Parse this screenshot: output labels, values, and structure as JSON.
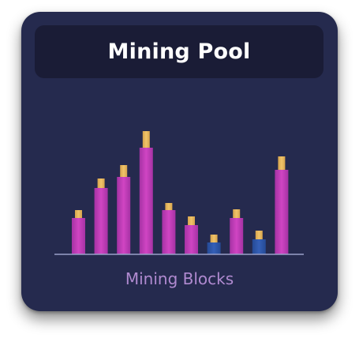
{
  "card": {
    "title": "Mining Pool",
    "footer_label": "Mining Blocks"
  },
  "chart_data": {
    "type": "bar",
    "values": [
      46,
      84,
      98,
      135,
      56,
      37,
      15,
      46,
      19,
      107
    ],
    "caps": [
      10,
      12,
      15,
      21,
      9,
      11,
      10,
      11,
      11,
      17
    ],
    "kinds": [
      "active",
      "active",
      "active",
      "active",
      "active",
      "active",
      "idle",
      "active",
      "idle",
      "active"
    ],
    "ylim": [
      0,
      160
    ],
    "grid": false
  },
  "colors": {
    "card_bg": "#252a4e",
    "header_bg": "#1a1c36",
    "bar_active": "#c13fb6",
    "bar_idle": "#2e55a8",
    "bar_cap": "#e4b45a",
    "baseline": "#9aa0c8",
    "footer_text": "#b08ad0"
  }
}
